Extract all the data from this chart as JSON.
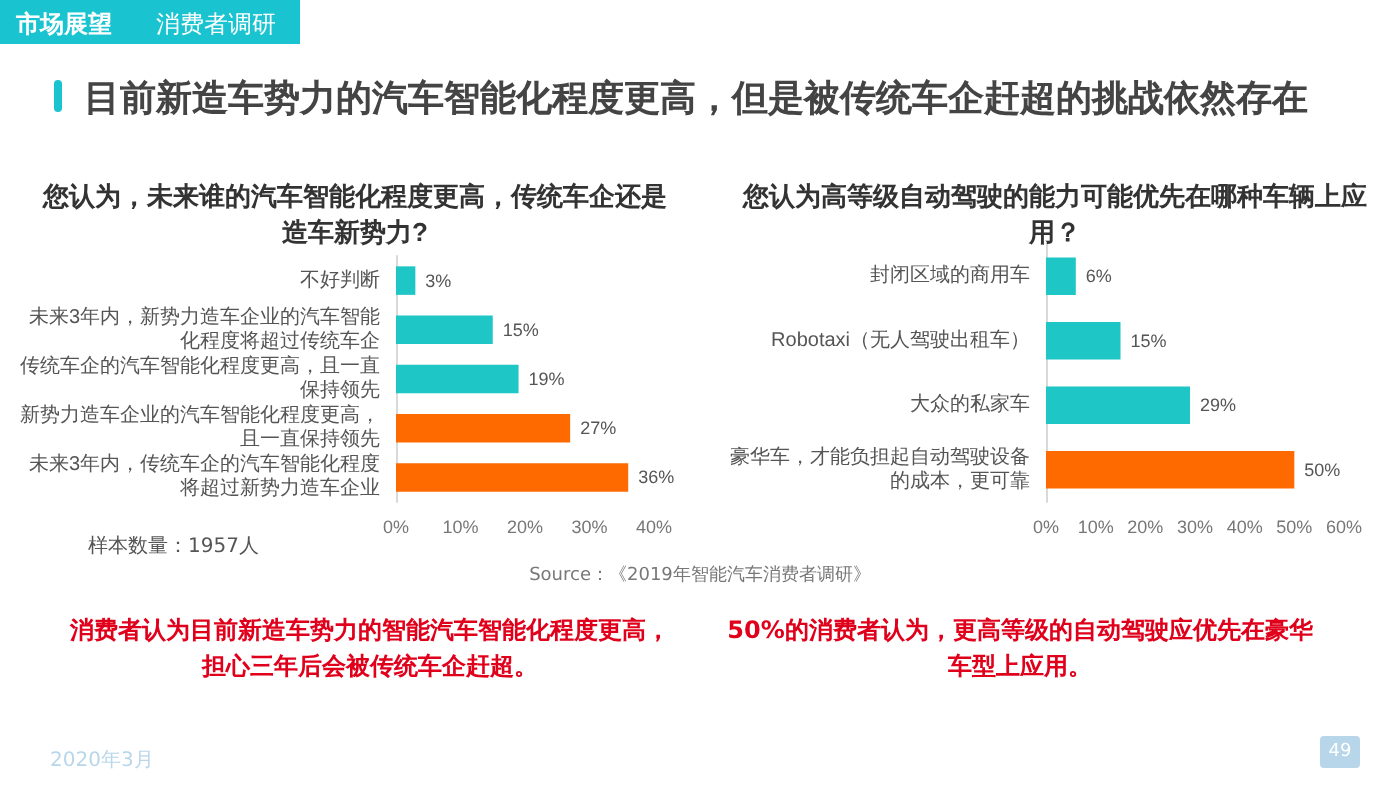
{
  "chart_data": [
    {
      "type": "bar",
      "orientation": "horizontal",
      "title": "您认为，未来谁的汽车智能化程度更高，传统车企还是造车新势力?",
      "categories": [
        "不好判断",
        "未来3年内，新势力造车企业的汽车智能化程度将超过传统车企",
        "传统车企的汽车智能化程度更高，且一直保持领先",
        "新势力造车企业的汽车智能化程度更高，且一直保持领先",
        "未来3年内，传统车企的汽车智能化程度将超过新势力造车企业"
      ],
      "values": [
        3,
        15,
        19,
        27,
        36
      ],
      "colors": [
        "#1fc6c6",
        "#1fc6c6",
        "#1fc6c6",
        "#ff6a00",
        "#ff6a00"
      ],
      "value_labels": [
        "3%",
        "15%",
        "19%",
        "27%",
        "36%"
      ],
      "xlim": [
        0,
        40
      ],
      "xticks": [
        {
          "value": 0,
          "label": "0%"
        },
        {
          "value": 10,
          "label": "10%"
        },
        {
          "value": 20,
          "label": "20%"
        },
        {
          "value": 30,
          "label": "30%"
        },
        {
          "value": 40,
          "label": "40%"
        }
      ],
      "annotations": [
        "市场展望",
        "消费者调研",
        "目前新造车势力的汽车智能化程度更高，但是被传统车企赶超的挑战依然存在",
        "样本数量：1957人",
        "Source：《2019年智能汽车消费者调研》",
        "消费者认为目前新造车势力的智能汽车智能化程度更高，担心三年后会被传统车企赶超。"
      ]
    },
    {
      "type": "bar",
      "orientation": "horizontal",
      "title": "您认为高等级自动驾驶的能力可能优先在哪种车辆上应用？",
      "categories": [
        "封闭区域的商用车",
        "Robotaxi（无人驾驶出租车）",
        "大众的私家车",
        "豪华车，才能负担起自动驾驶设备的成本，更可靠"
      ],
      "values": [
        6,
        15,
        29,
        50
      ],
      "colors": [
        "#1fc6c6",
        "#1fc6c6",
        "#1fc6c6",
        "#ff6a00"
      ],
      "value_labels": [
        "6%",
        "15%",
        "29%",
        "50%"
      ],
      "xlim": [
        0,
        60
      ],
      "xticks": [
        {
          "value": 0,
          "label": "0%"
        },
        {
          "value": 10,
          "label": "10%"
        },
        {
          "value": 20,
          "label": "20%"
        },
        {
          "value": 30,
          "label": "30%"
        },
        {
          "value": 40,
          "label": "40%"
        },
        {
          "value": 50,
          "label": "50%"
        },
        {
          "value": 60,
          "label": "60%"
        }
      ],
      "annotations": [
        "50%的消费者认为，更高等级的自动驾驶应优先在豪华车型上应用。",
        "2020年3月",
        "49"
      ]
    }
  ]
}
